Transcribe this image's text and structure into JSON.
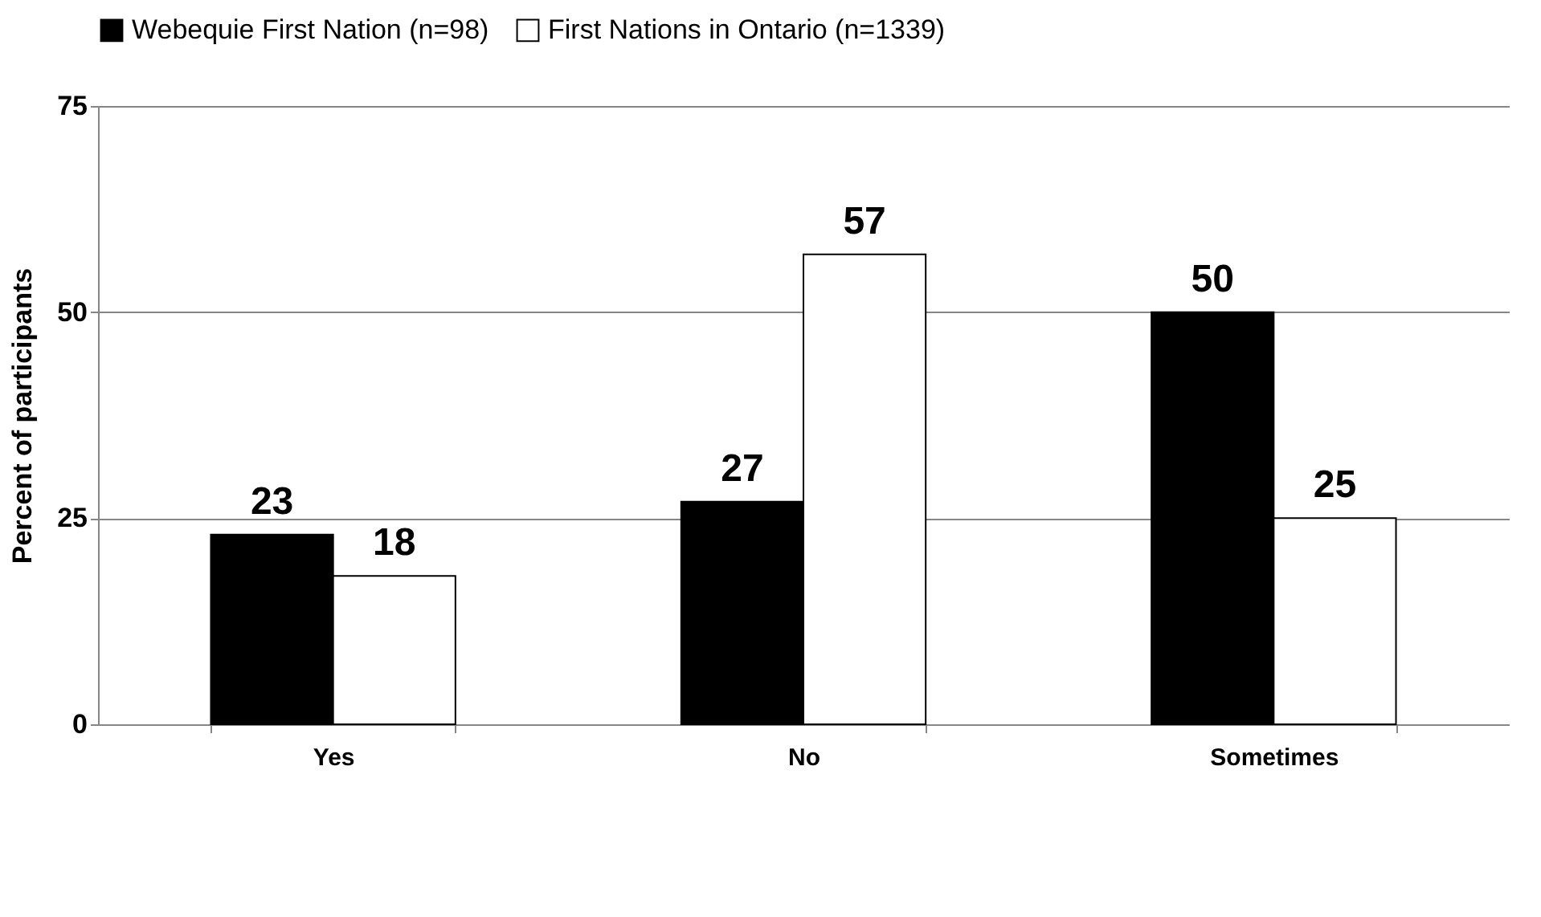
{
  "chart_data": {
    "type": "bar",
    "categories": [
      "Yes",
      "No",
      "Sometimes"
    ],
    "series": [
      {
        "name": "Webequie First Nation (n=98)",
        "color": "#000000",
        "values": [
          23,
          27,
          50
        ]
      },
      {
        "name": "First Nations in Ontario (n=1339)",
        "color": "#ffffff",
        "values": [
          18,
          57,
          25
        ]
      }
    ],
    "ylabel": "Percent of participants",
    "ylim": [
      0,
      75
    ],
    "yticks": [
      0,
      25,
      50,
      75
    ],
    "grid": "y",
    "legend": "top",
    "data_labels": true
  }
}
